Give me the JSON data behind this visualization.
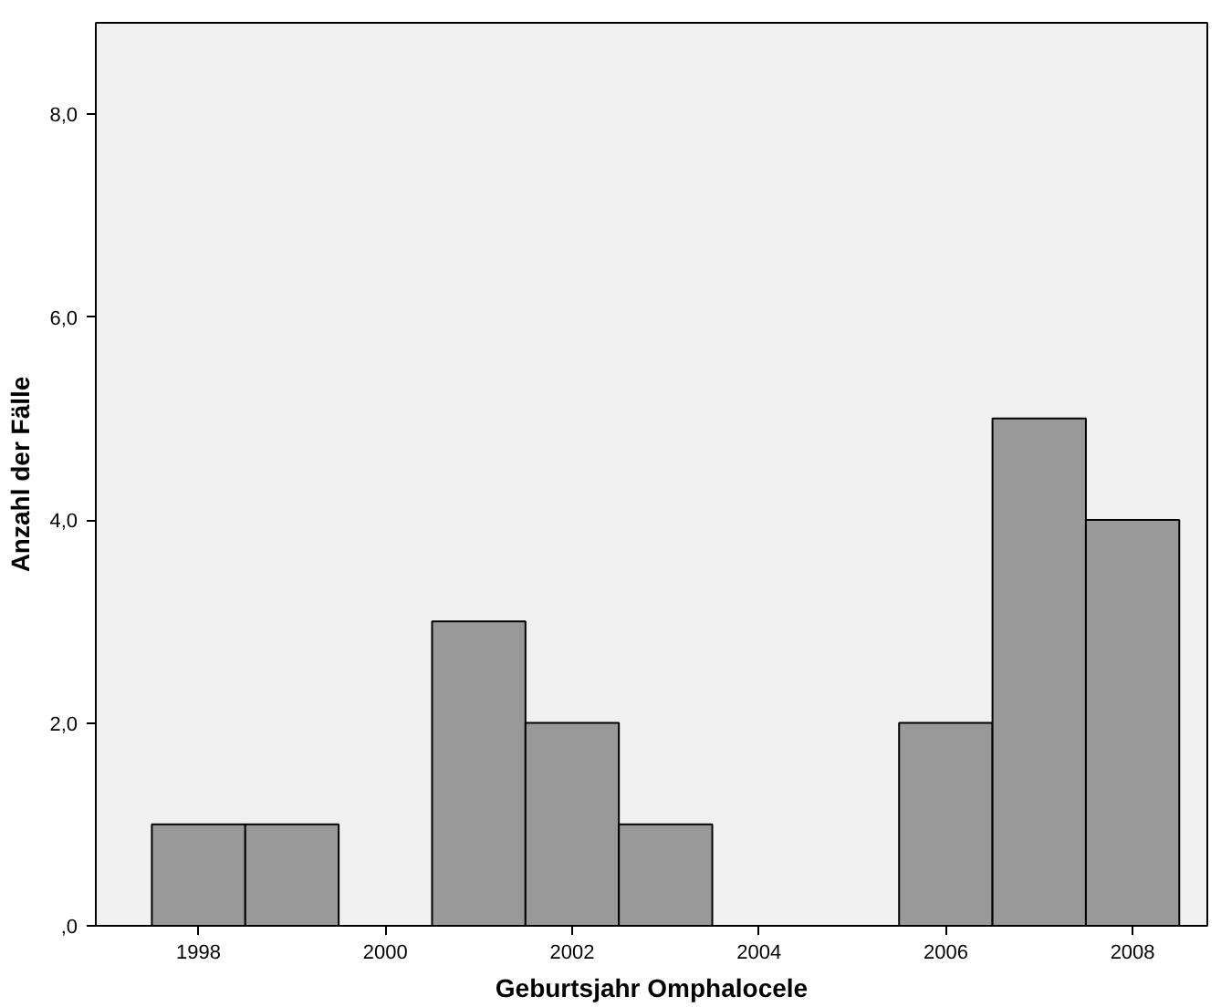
{
  "chart_data": {
    "type": "histogram",
    "xlabel": "Geburtsjahr Omphalocele",
    "ylabel": "Anzahl der Fälle",
    "bins": [
      1997.5,
      1998.5,
      1999.5,
      2000.5,
      2001.5,
      2002.5,
      2003.5,
      2004.5,
      2005.5,
      2006.5,
      2007.5,
      2008.5
    ],
    "values": [
      1,
      1,
      0,
      3,
      2,
      1,
      0,
      0,
      2,
      5,
      4
    ],
    "color": "#999999",
    "xlim": [
      1996.9,
      2008.8
    ],
    "ylim": [
      0,
      8.9
    ],
    "xticks": [
      1998,
      2000,
      2002,
      2004,
      2006,
      2008
    ],
    "yticks": [
      {
        "value": 0,
        "label": ",0"
      },
      {
        "value": 2,
        "label": "2,0"
      },
      {
        "value": 4,
        "label": "4,0"
      },
      {
        "value": 6,
        "label": "6,0"
      },
      {
        "value": 8,
        "label": "8,0"
      }
    ]
  }
}
